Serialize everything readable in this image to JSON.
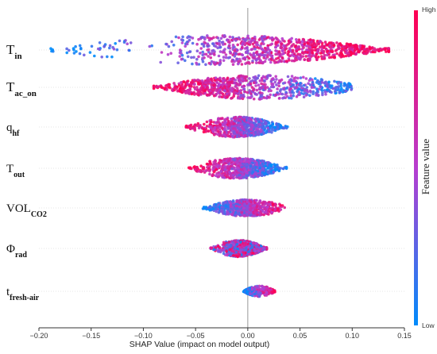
{
  "chart_data": {
    "type": "scatter",
    "subtype": "shap-beeswarm",
    "xlabel": "SHAP Value (impact on model output)",
    "xlim": [
      -0.2,
      0.15
    ],
    "xticks": [
      -0.2,
      -0.15,
      -0.1,
      -0.05,
      0.0,
      0.05,
      0.1,
      0.15
    ],
    "xtick_labels": [
      "−0.20",
      "−0.15",
      "−0.10",
      "−0.05",
      "0.00",
      "0.05",
      "0.10",
      "0.15"
    ],
    "colorbar": {
      "label": "Feature value",
      "high_label": "High",
      "low_label": "Low",
      "high_color": "#ff0052",
      "low_color": "#008bfb"
    },
    "features": [
      {
        "name": "T",
        "sub": "in",
        "min": -0.19,
        "max": 0.135,
        "spread": 0.9,
        "high_side": "right"
      },
      {
        "name": "T",
        "sub": "ac_on",
        "min": -0.09,
        "max": 0.115,
        "spread": 0.7,
        "high_side": "left"
      },
      {
        "name": "q",
        "sub": "hf",
        "min": -0.06,
        "max": 0.038,
        "spread": 0.55,
        "high_side": "left"
      },
      {
        "name": "T",
        "sub": "out",
        "min": -0.057,
        "max": 0.037,
        "spread": 0.55,
        "high_side": "left"
      },
      {
        "name": "VOL",
        "sub": "CO2",
        "min": -0.043,
        "max": 0.042,
        "spread": 0.4,
        "high_side": "right"
      },
      {
        "name": "Φ",
        "sub": "rad",
        "min": -0.036,
        "max": 0.018,
        "spread": 0.4,
        "high_side": "mixed"
      },
      {
        "name": "t",
        "sub": "fresh-air",
        "min": -0.004,
        "max": 0.027,
        "spread": 0.18,
        "high_side": "right"
      }
    ]
  }
}
